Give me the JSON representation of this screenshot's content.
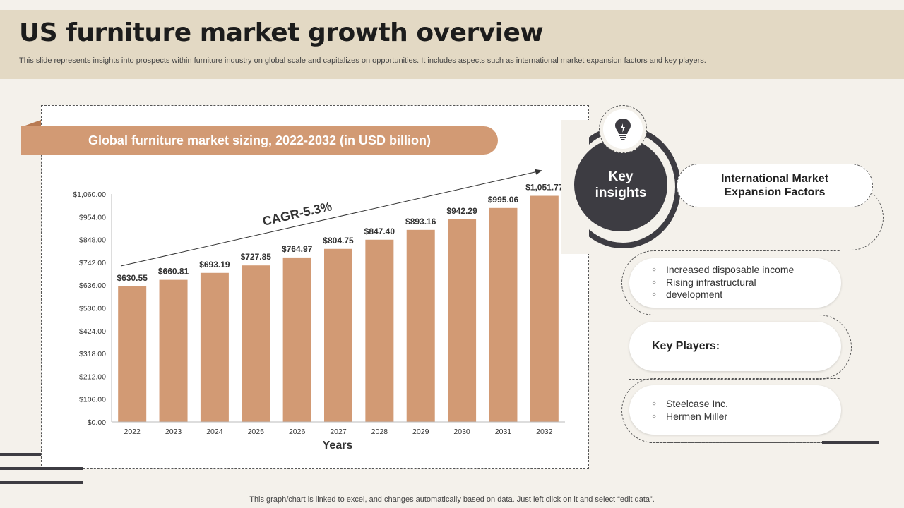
{
  "header": {
    "title": "US furniture market growth overview",
    "subtitle": "This slide represents insights into prospects within furniture industry on global scale and capitalizes on opportunities. It includes aspects such as international market expansion factors and key players."
  },
  "chart_data": {
    "type": "bar",
    "title": "Global furniture market sizing, 2022-2032 (in USD billion)",
    "categories": [
      "2022",
      "2023",
      "2024",
      "2025",
      "2026",
      "2027",
      "2028",
      "2029",
      "2030",
      "2031",
      "2032"
    ],
    "values": [
      630.55,
      660.81,
      693.19,
      727.85,
      764.97,
      804.75,
      847.4,
      893.16,
      942.29,
      995.06,
      1051.77
    ],
    "value_labels": [
      "$630.55",
      "$660.81",
      "$693.19",
      "$727.85",
      "$764.97",
      "$804.75",
      "$847.40",
      "$893.16",
      "$942.29",
      "$995.06",
      "$1,051.77"
    ],
    "y_ticks": [
      0,
      106,
      212,
      318,
      424,
      530,
      636,
      742,
      848,
      954,
      1060
    ],
    "y_tick_labels": [
      "$0.00",
      "$106.00",
      "$212.00",
      "$318.00",
      "$424.00",
      "$530.00",
      "$636.00",
      "$742.00",
      "$848.00",
      "$954.00",
      "$1,060.00"
    ],
    "ylim": [
      0,
      1060
    ],
    "xlabel": "Years",
    "ylabel": "",
    "annotation": "CAGR-5.3%",
    "bar_color": "#d29a74",
    "grid": false
  },
  "insights": {
    "title_line1": "Key",
    "title_line2": "insights",
    "icon": "lightbulb-icon",
    "factors_title_line1": "International Market",
    "factors_title_line2": "Expansion Factors",
    "factors": [
      "Increased disposable income",
      "Rising infrastructural",
      "development"
    ],
    "key_players_title": "Key Players:",
    "players": [
      "Steelcase Inc.",
      "Hermen Miller"
    ]
  },
  "footer": {
    "note": "This graph/chart is linked to excel,  and changes automatically based on data. Just left click on it and select “edit data”."
  },
  "colors": {
    "accent": "#d29a74",
    "dark": "#3d3c42",
    "header_bg": "#e3d9c4"
  }
}
